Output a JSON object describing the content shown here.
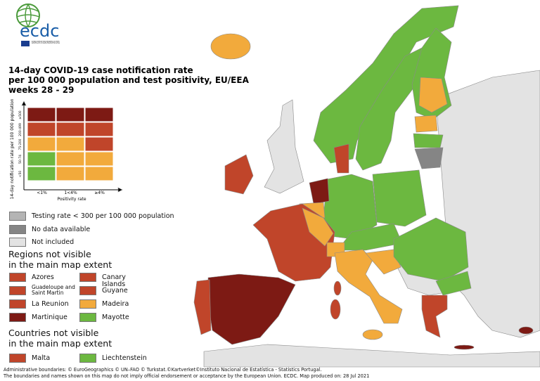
{
  "logo": {
    "name": "ecdc",
    "subtitle": "EUROPEAN CENTRE FOR DISEASE PREVENTION AND CONTROL"
  },
  "title": [
    "14-day COVID-19 case notification rate",
    "per 100 000 population and test positivity, EU/EEA",
    "weeks 28 - 29"
  ],
  "matrix": {
    "y_label": "14-day notification rate per 100 000 population",
    "rows": [
      "≥500",
      "200-499",
      "75-200",
      "50-74",
      "<50"
    ],
    "columns": [
      "<1%",
      "1<4%",
      "≥4%"
    ],
    "x_label": "Positivity rate",
    "cells": [
      [
        "#7d1a14",
        "#7d1a14",
        "#7d1a14"
      ],
      [
        "#c0452a",
        "#c0452a",
        "#c0452a"
      ],
      [
        "#f2aa3c",
        "#f2aa3c",
        "#c0452a"
      ],
      [
        "#6cb840",
        "#f2aa3c",
        "#f2aa3c"
      ],
      [
        "#6cb840",
        "#f2aa3c",
        "#f2aa3c"
      ]
    ]
  },
  "legend": [
    {
      "label": "Testing rate < 300 per 100 000 population",
      "color": "#b4b4b4"
    },
    {
      "label": "No data available",
      "color": "#858585"
    },
    {
      "label": "Not included",
      "color": "#e3e3e3"
    }
  ],
  "regions": {
    "title": [
      "Regions not visible",
      "in the main map extent"
    ],
    "items": [
      {
        "label": "Azores",
        "color": "#c0452a"
      },
      {
        "label": "Guadeloupe and Saint Martin",
        "color": "#c0452a"
      },
      {
        "label": "La Reunion",
        "color": "#c0452a"
      },
      {
        "label": "Martinique",
        "color": "#7d1a14"
      },
      {
        "label": "Canary Islands",
        "color": "#c0452a"
      },
      {
        "label": "Guyane",
        "color": "#c0452a"
      },
      {
        "label": "Madeira",
        "color": "#f2aa3c"
      },
      {
        "label": "Mayotte",
        "color": "#6cb840"
      }
    ]
  },
  "countries": {
    "title": [
      "Countries not visible",
      "in the main map extent"
    ],
    "items": [
      {
        "label": "Malta",
        "color": "#c0452a"
      },
      {
        "label": "Liechtenstein",
        "color": "#6cb840"
      }
    ]
  },
  "footer": [
    "Administrative boundaries: © EuroGeographics © UN–FAO © Turkstat.©Kartverket©Instituto Nacional de Estatística - Statistics Portugal.",
    "The boundaries and names shown on this map do not imply official endorsement or acceptance by the European Union. ECDC. Map produced on: 28 Jul 2021"
  ]
}
